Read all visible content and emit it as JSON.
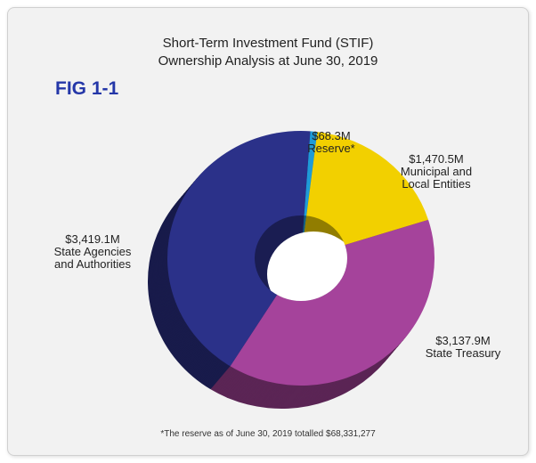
{
  "chart_data": {
    "type": "pie",
    "donut": true,
    "figure_label": "FIG 1-1",
    "title": [
      "Short-Term Investment Fund (STIF)",
      "Ownership Analysis at June 30, 2019"
    ],
    "categories": [
      "Reserve*",
      "Municipal and Local Entities",
      "State Treasury",
      "State Agencies and Authorities"
    ],
    "values": [
      68.3,
      1470.5,
      3137.9,
      3419.1
    ],
    "value_labels": [
      "$68.3M",
      "$1,470.5M",
      "$3,137.9M",
      "$3,419.1M"
    ],
    "colors": [
      "#1e9bd7",
      "#f2d000",
      "#a5439b",
      "#2b3189"
    ],
    "footnote": "*The reserve as of June 30, 2019 totalled $68,331,277"
  }
}
